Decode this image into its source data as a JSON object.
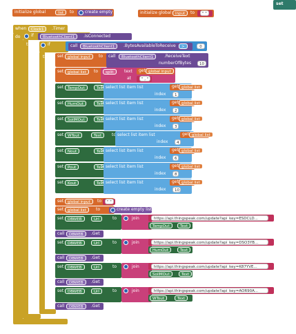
{
  "top": {
    "init1": {
      "label": "initialize global",
      "var": "list",
      "to": "to",
      "action": "create empty list"
    },
    "init2": {
      "label": "initialize global",
      "var": "input",
      "to": "to",
      "value": "\" \""
    },
    "corner": "set"
  },
  "event": {
    "when": "when",
    "component": "Clock1",
    "event": ".Timer",
    "do": "do"
  },
  "if": {
    "if1": "if",
    "then1": "then",
    "bt": "BluetoothClient1",
    "connected": ".IsConnected",
    "if2": "if",
    "then2": "then",
    "call": "call",
    "bt2": "BluetoothClient1",
    "bytes": ".BytesAvailableToReceive",
    "op": ">",
    "zero": "0"
  },
  "setinput": {
    "set": "set",
    "var": "global input",
    "to": "to",
    "call": "call",
    "bt": "BluetoothClient1",
    "method": ".ReceiveText",
    "param": "numberOfBytes",
    "num": "10"
  },
  "split": {
    "set": "set",
    "var": "global list",
    "to": "to",
    "split": "split",
    "text": "text",
    "get": "get",
    "getvar": "global input",
    "at": "at",
    "atval": "\" , \""
  },
  "assigns": [
    {
      "comp": "TempOut",
      "prop": "Text",
      "index": "1"
    },
    {
      "comp": "HumOut",
      "prop": "Text",
      "index": "2"
    },
    {
      "comp": "SoilMOut",
      "prop": "Text",
      "index": "3"
    },
    {
      "comp": "WTout",
      "prop": "Text",
      "index": "4"
    },
    {
      "comp": "Nout",
      "prop": "Text",
      "index": "6"
    },
    {
      "comp": "Pout",
      "prop": "Text",
      "index": "8"
    },
    {
      "comp": "Kout",
      "prop": "Text",
      "index": "10"
    }
  ],
  "assignCommon": {
    "set": "set",
    "to": "to",
    "select": "select list item list",
    "get": "get",
    "getvar": "global list",
    "indexlabel": "index"
  },
  "reset": {
    "set1": "set",
    "var1": "global input",
    "to1": "to",
    "val1": "\" \"",
    "set2": "set",
    "var2": "global list",
    "to2": "to",
    "val2": "create empty list"
  },
  "web": [
    {
      "comp": "DBWEB",
      "prop": "Url",
      "url": "https://api.thingspeak.com/update?api_key=ESDCLD...",
      "comp2": "TempOut",
      "prop2": "Text"
    },
    {
      "comp": "DBWEB",
      "prop": "Url",
      "url": "https://api.thingspeak.com/update?api_key=DSO3YB...",
      "comp2": "HumOut",
      "prop2": "Text"
    },
    {
      "comp": "DBWEB",
      "prop": "Url",
      "url": "https://api.thingspeak.com/update?api_key=K87YVE...",
      "comp2": "SoilMOut",
      "prop2": "Text"
    },
    {
      "comp": "DBWEB",
      "prop": "Url",
      "url": "https://api.thingspeak.com/update?api_key=AOR90A...",
      "comp2": "WTout",
      "prop2": "Text"
    }
  ],
  "webCommon": {
    "set": "set",
    "to": "to",
    "join": "join",
    "call": "call",
    "get": ".Get"
  }
}
